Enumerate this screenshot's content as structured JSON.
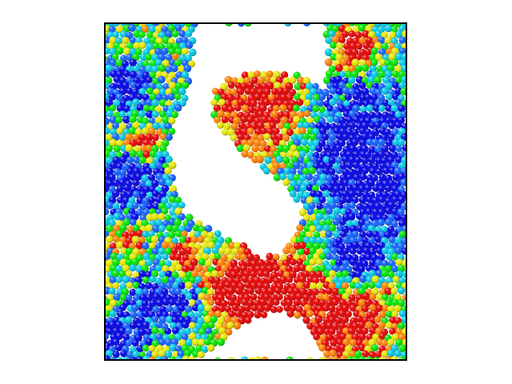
{
  "scene": {
    "kind": "particle-simulation-render",
    "background": "#ffffff",
    "frame_color": "#000000",
    "void_color": "#ffffff",
    "particle_palette": [
      "#0000e6",
      "#1060ff",
      "#00c8e6",
      "#00e600",
      "#e6e600",
      "#ff8000",
      "#e60000"
    ],
    "colormap": "rainbow-blue-to-red"
  }
}
